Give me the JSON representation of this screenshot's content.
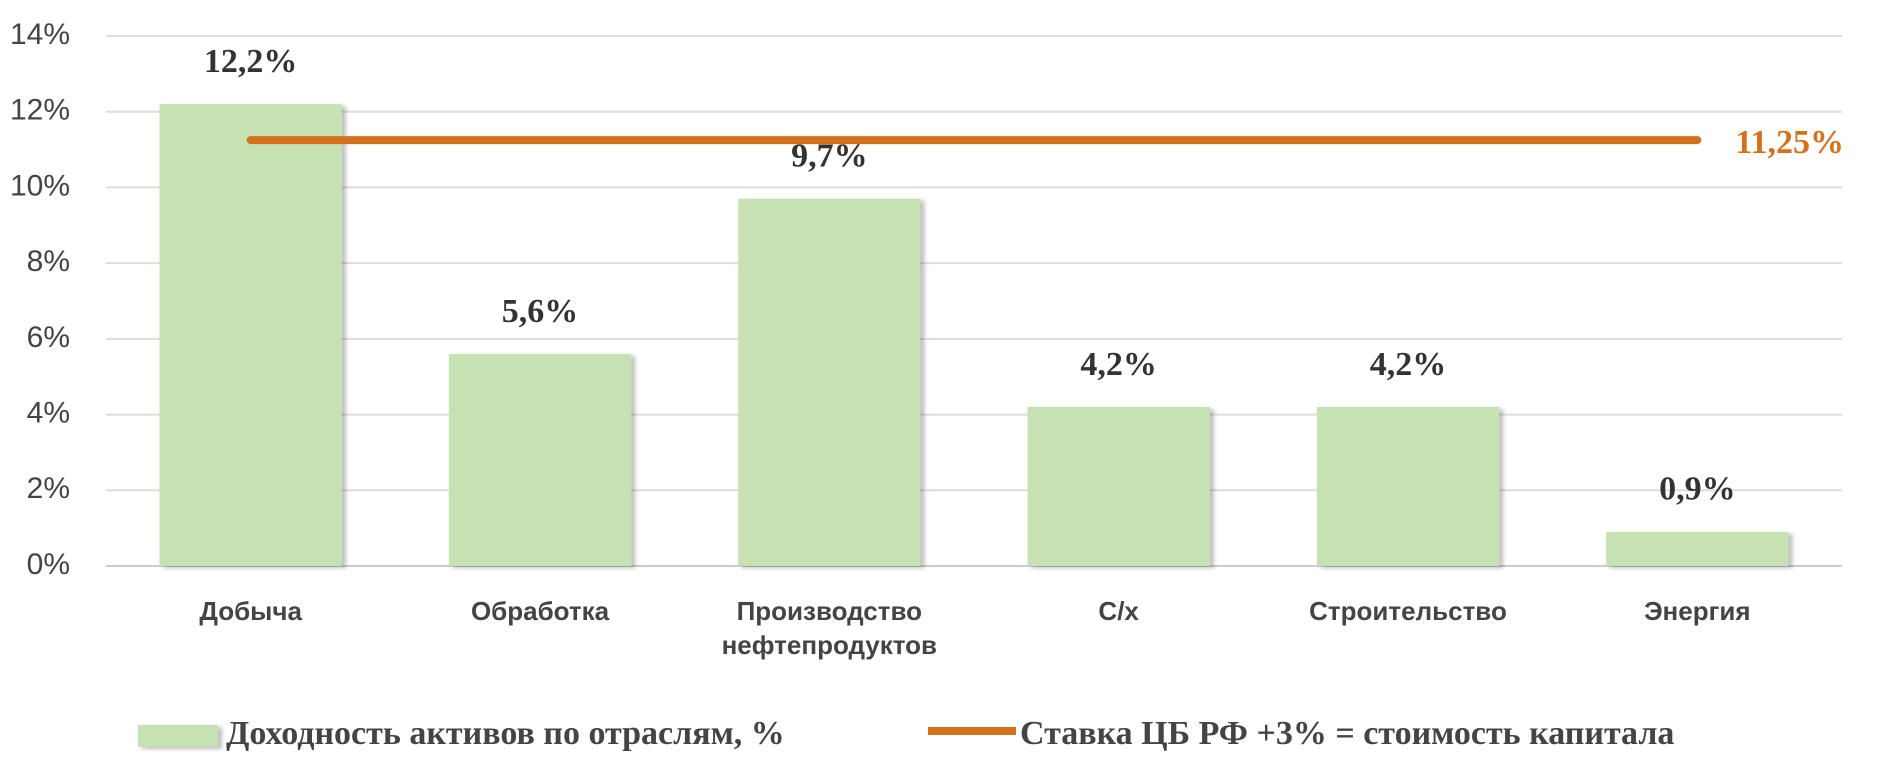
{
  "chart_data": {
    "type": "bar",
    "categories": [
      "Добыча",
      "Обработка",
      "Производство нефтепродуктов",
      "С/х",
      "Строительство",
      "Энергия"
    ],
    "series": [
      {
        "name": "Доходность активов по отраслям, %",
        "type": "bar",
        "color": "#c6e2b3",
        "values": [
          12.2,
          5.6,
          9.7,
          4.2,
          4.2,
          0.9
        ],
        "value_labels": [
          "12,2%",
          "5,6%",
          "9,7%",
          "4,2%",
          "4,2%",
          "0,9%"
        ]
      },
      {
        "name": "Ставка ЦБ РФ +3% = стоимость капитала",
        "type": "line",
        "color": "#d4711c",
        "values": [
          11.25,
          11.25,
          11.25,
          11.25,
          11.25,
          11.25
        ],
        "value_labels": [
          null,
          null,
          null,
          null,
          null,
          "11,25%"
        ]
      }
    ],
    "ylim": [
      0,
      14
    ],
    "yticks": [
      {
        "value": 0,
        "label": "0%"
      },
      {
        "value": 2,
        "label": "2%"
      },
      {
        "value": 4,
        "label": "4%"
      },
      {
        "value": 6,
        "label": "6%"
      },
      {
        "value": 8,
        "label": "8%"
      },
      {
        "value": 10,
        "label": "10%"
      },
      {
        "value": 12,
        "label": "12%"
      },
      {
        "value": 14,
        "label": "14%"
      }
    ],
    "grid": true,
    "legend": "bottom"
  }
}
